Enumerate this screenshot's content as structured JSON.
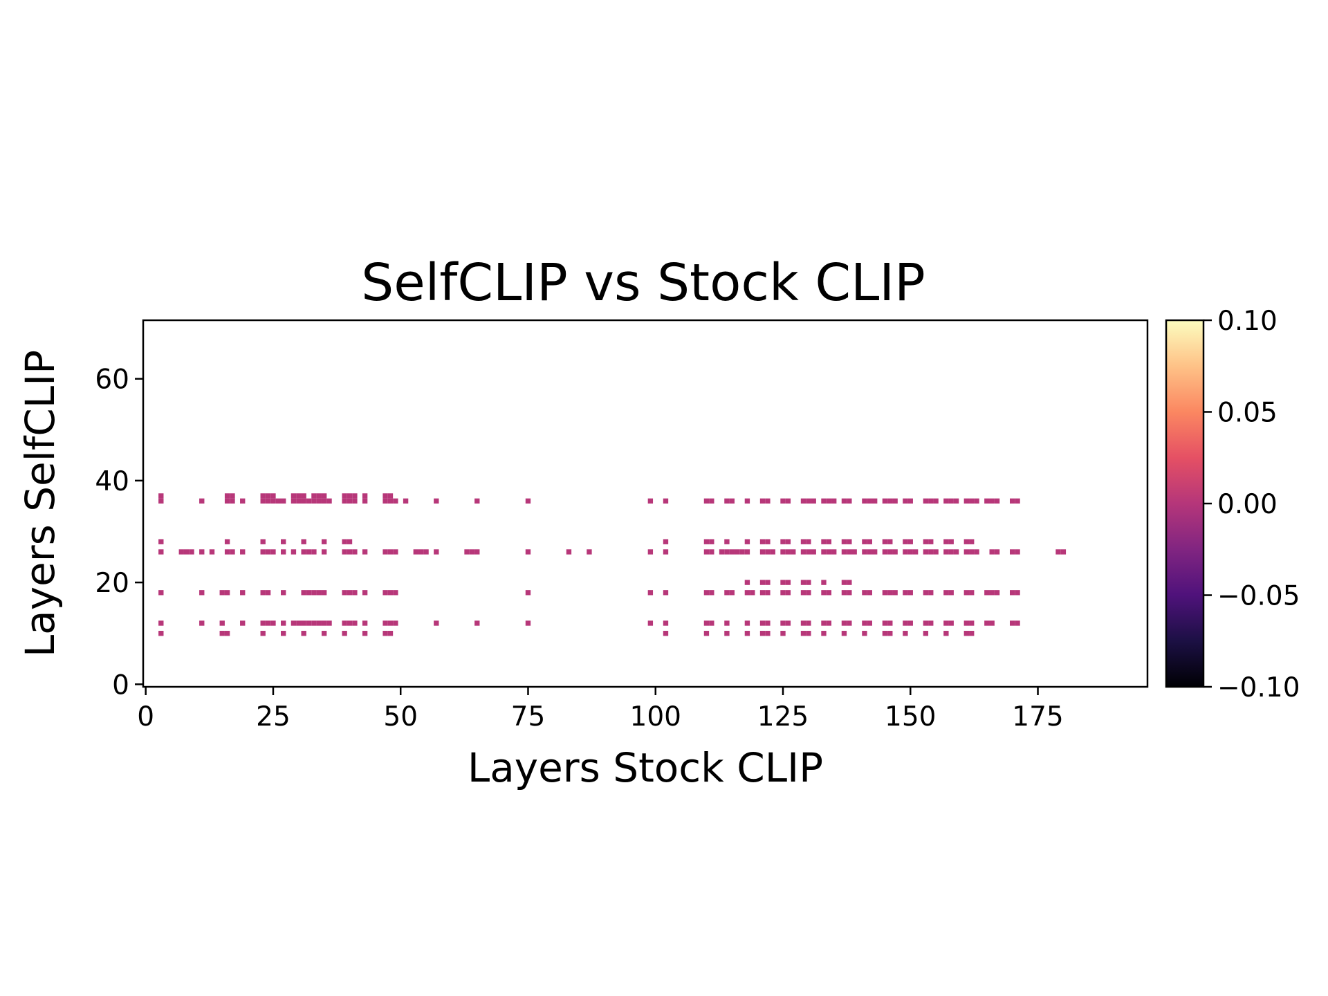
{
  "chart_data": {
    "type": "heatmap",
    "title": "SelfCLIP vs Stock CLIP",
    "xlabel": "Layers Stock CLIP",
    "ylabel": "Layers SelfCLIP",
    "xlim": [
      -0.5,
      196.5
    ],
    "ylim": [
      -0.5,
      71.5
    ],
    "xticks": [
      0,
      25,
      50,
      75,
      100,
      125,
      150,
      175
    ],
    "yticks": [
      0,
      20,
      40,
      60
    ],
    "colormap": "magma",
    "vmin": -0.1,
    "vmax": 0.1,
    "colorbar_ticks": [
      "0.10",
      "0.05",
      "0.00",
      "−0.05",
      "−0.10"
    ],
    "colorbar_values": [
      0.1,
      0.05,
      0.0,
      -0.05,
      -0.1
    ],
    "cell_value": 0.0,
    "cell_color": "#b73779",
    "grid": false,
    "rows": [
      {
        "y": 37,
        "x": [
          3,
          16,
          17,
          23,
          24,
          25,
          29,
          30,
          31,
          33,
          34,
          35,
          39,
          40,
          41,
          43,
          47,
          48
        ]
      },
      {
        "y": 36,
        "x": [
          3,
          11,
          16,
          17,
          19,
          23,
          24,
          25,
          26,
          27,
          29,
          30,
          31,
          32,
          33,
          34,
          35,
          36,
          39,
          40,
          41,
          43,
          47,
          48,
          49,
          51,
          57,
          65,
          75,
          99,
          102,
          110,
          111,
          114,
          115,
          118,
          121,
          122,
          125,
          126,
          129,
          130,
          131,
          133,
          134,
          135,
          137,
          138,
          141,
          142,
          143,
          145,
          146,
          147,
          149,
          150,
          153,
          154,
          155,
          157,
          158,
          159,
          161,
          162,
          163,
          165,
          166,
          167,
          170,
          171
        ]
      },
      {
        "y": 28,
        "x": [
          3,
          16,
          23,
          27,
          31,
          35,
          39,
          40,
          102,
          110,
          111,
          114,
          118,
          121,
          122,
          125,
          126,
          129,
          130,
          133,
          134,
          137,
          138,
          141,
          142,
          145,
          146,
          149,
          150,
          153,
          154,
          157,
          158,
          161,
          162
        ]
      },
      {
        "y": 26,
        "x": [
          3,
          7,
          8,
          9,
          11,
          13,
          16,
          17,
          19,
          23,
          24,
          25,
          27,
          29,
          31,
          32,
          33,
          35,
          39,
          40,
          41,
          43,
          47,
          48,
          49,
          53,
          54,
          55,
          57,
          63,
          64,
          65,
          75,
          83,
          87,
          99,
          102,
          110,
          111,
          113,
          114,
          115,
          116,
          117,
          118,
          121,
          122,
          123,
          125,
          126,
          127,
          129,
          130,
          131,
          133,
          134,
          135,
          137,
          138,
          139,
          141,
          142,
          143,
          145,
          146,
          147,
          149,
          150,
          151,
          153,
          154,
          155,
          157,
          158,
          159,
          161,
          162,
          163,
          166,
          167,
          170,
          171,
          179,
          180
        ]
      },
      {
        "y": 20,
        "x": [
          118,
          121,
          122,
          125,
          126,
          129,
          130,
          133,
          137,
          138
        ]
      },
      {
        "y": 18,
        "x": [
          3,
          11,
          15,
          16,
          19,
          23,
          24,
          27,
          31,
          32,
          33,
          34,
          35,
          39,
          40,
          41,
          43,
          47,
          48,
          49,
          75,
          99,
          102,
          110,
          111,
          114,
          115,
          118,
          119,
          121,
          122,
          125,
          126,
          129,
          130,
          133,
          134,
          137,
          138,
          141,
          142,
          145,
          146,
          147,
          149,
          150,
          153,
          154,
          157,
          158,
          161,
          162,
          165,
          166,
          167,
          170,
          171
        ]
      },
      {
        "y": 12,
        "x": [
          3,
          11,
          15,
          19,
          23,
          24,
          25,
          27,
          29,
          30,
          31,
          32,
          33,
          34,
          35,
          36,
          39,
          40,
          41,
          43,
          47,
          48,
          49,
          57,
          65,
          75,
          99,
          102,
          110,
          111,
          114,
          118,
          121,
          122,
          125,
          126,
          129,
          130,
          133,
          134,
          137,
          138,
          141,
          142,
          145,
          146,
          149,
          150,
          153,
          154,
          157,
          158,
          161,
          162,
          165,
          166,
          170,
          171
        ]
      },
      {
        "y": 10,
        "x": [
          3,
          15,
          16,
          23,
          27,
          31,
          35,
          39,
          43,
          47,
          48,
          102,
          110,
          114,
          118,
          121,
          122,
          125,
          129,
          130,
          133,
          137,
          141,
          145,
          146,
          149,
          153,
          157,
          161,
          162
        ]
      }
    ]
  }
}
